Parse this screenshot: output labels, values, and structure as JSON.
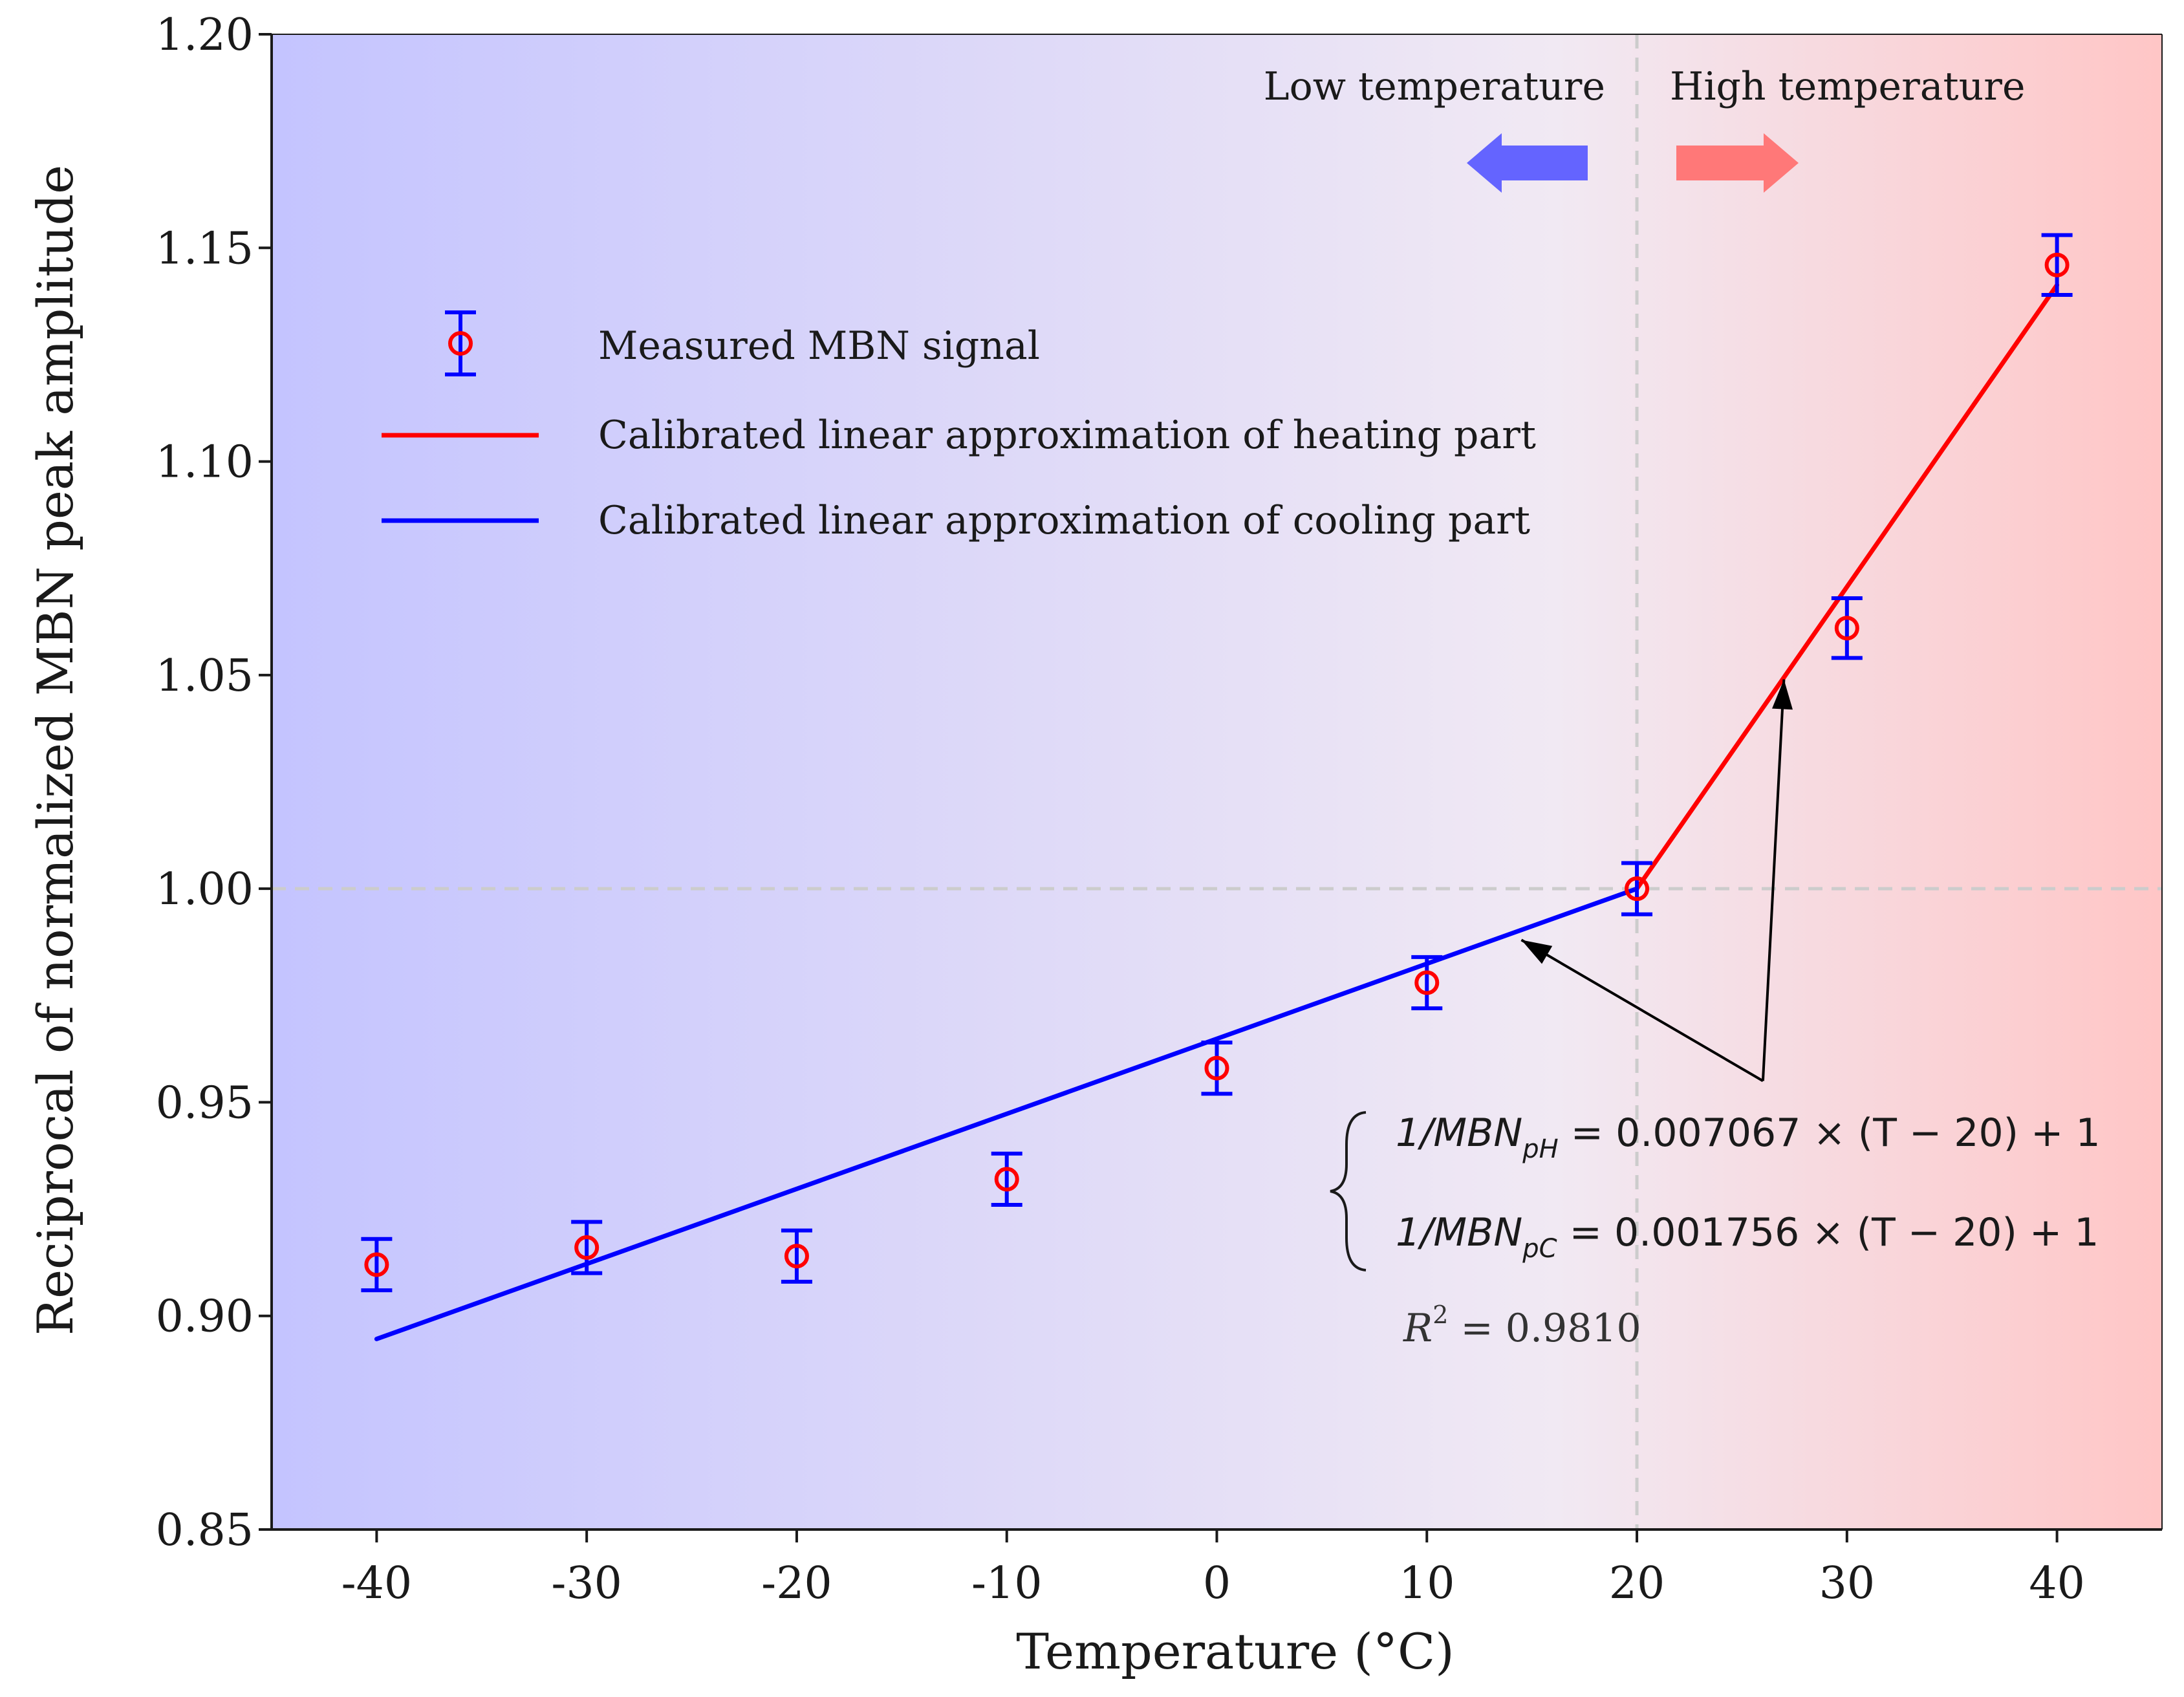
{
  "colors": {
    "bg_left": "#c4c4ff",
    "bg_mid": "#f1e9f3",
    "bg_right": "#ffc6c6",
    "marker": "#ff0000",
    "error_bar": "#0000ff",
    "heating_line": "#ff0000",
    "cooling_line": "#0000ff",
    "low_arrow": "#6464ff",
    "high_arrow": "#ff7878",
    "guide_line": "#cccccc"
  },
  "chart_data": {
    "type": "scatter",
    "xlabel": "Temperature (°C)",
    "ylabel": "Reciprocal of normalized MBN peak amplitude",
    "xlim": [
      -45,
      45
    ],
    "ylim": [
      0.85,
      1.2
    ],
    "x_ticks": [
      -40,
      -30,
      -20,
      -10,
      0,
      10,
      20,
      30,
      40
    ],
    "x_tick_labels": [
      "-40",
      "-30",
      "-20",
      "-10",
      "0",
      "10",
      "20",
      "30",
      "40"
    ],
    "y_ticks": [
      0.85,
      0.9,
      0.95,
      1.0,
      1.05,
      1.1,
      1.15,
      1.2
    ],
    "y_tick_labels": [
      "0.85",
      "0.90",
      "0.95",
      "1.00",
      "1.05",
      "1.10",
      "1.15",
      "1.20"
    ],
    "series": [
      {
        "name": "Measured MBN signal",
        "kind": "errorbar",
        "x": [
          -40,
          -30,
          -20,
          -10,
          0,
          10,
          20,
          30,
          40
        ],
        "y": [
          0.912,
          0.916,
          0.914,
          0.932,
          0.958,
          0.978,
          1.0,
          1.061,
          1.146
        ],
        "err": [
          0.006,
          0.006,
          0.006,
          0.006,
          0.006,
          0.006,
          0.006,
          0.007,
          0.007
        ]
      },
      {
        "name": "Calibrated linear approximation of heating part",
        "kind": "line",
        "x": [
          20,
          40
        ],
        "y": [
          1.0,
          1.1413
        ]
      },
      {
        "name": "Calibrated linear approximation of cooling part",
        "kind": "line",
        "x": [
          -40,
          20
        ],
        "y": [
          0.8946,
          1.0
        ]
      }
    ],
    "reference_lines": {
      "x": 20,
      "y": 1.0
    },
    "region_labels": {
      "low": "Low temperature",
      "high": "High temperature"
    },
    "legend": {
      "measured": "Measured MBN signal",
      "heating": "Calibrated linear approximation of heating part",
      "cooling": "Calibrated linear approximation of cooling part"
    },
    "equations": {
      "heating_lhs": "1/MBN",
      "heating_sub": "pH",
      "heating_rhs": " = 0.007067 × (T − 20) + 1",
      "cooling_lhs": "1/MBN",
      "cooling_sub": "pC",
      "cooling_rhs": " = 0.001756 × (T − 20) + 1",
      "r2_label": "R",
      "r2_sup": "2",
      "r2_value": " = 0.9810"
    },
    "annotation_arrows": [
      {
        "from": [
          26,
          0.955
        ],
        "to": [
          14.5,
          0.988
        ]
      },
      {
        "from": [
          26,
          0.955
        ],
        "to": [
          27,
          1.049
        ]
      }
    ]
  }
}
